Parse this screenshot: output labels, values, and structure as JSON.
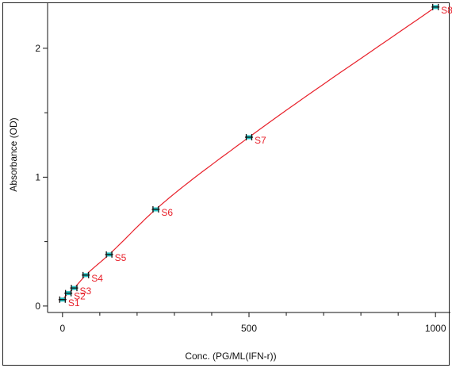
{
  "chart_data": {
    "type": "scatter",
    "title": "",
    "xlabel": "Conc. (PG/ML(IFN-r))",
    "ylabel": "Absorbance (OD)",
    "xlim": [
      -40,
      1040
    ],
    "ylim": [
      -0.05,
      2.35
    ],
    "x_ticks": [
      0,
      500,
      1000
    ],
    "y_ticks": [
      0,
      1,
      2
    ],
    "grid": false,
    "legend": "none",
    "colors": {
      "curve": "#e8202a",
      "label": "#e8202a",
      "point": "#22c4c4",
      "marker": "#111111"
    },
    "standards": [
      {
        "name": "S1",
        "x": 0,
        "y": 0.05
      },
      {
        "name": "S2",
        "x": 15.6,
        "y": 0.1
      },
      {
        "name": "S3",
        "x": 31.25,
        "y": 0.14
      },
      {
        "name": "S4",
        "x": 62.5,
        "y": 0.24
      },
      {
        "name": "S5",
        "x": 125,
        "y": 0.4
      },
      {
        "name": "S6",
        "x": 250,
        "y": 0.75
      },
      {
        "name": "S7",
        "x": 500,
        "y": 1.31
      },
      {
        "name": "S8",
        "x": 1000,
        "y": 2.32
      }
    ]
  }
}
